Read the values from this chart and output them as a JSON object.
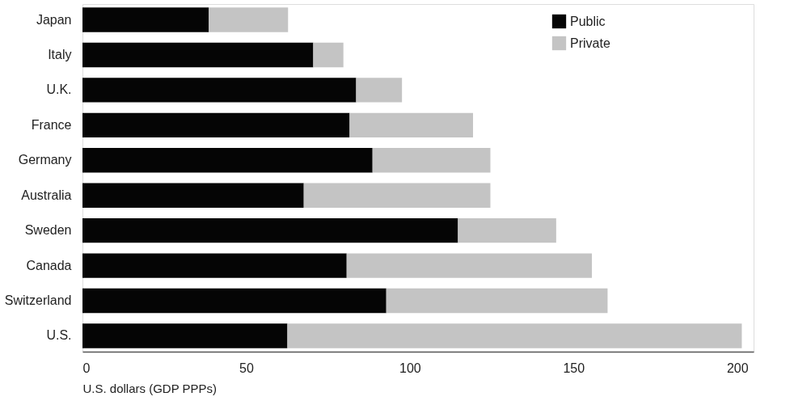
{
  "chart_data": {
    "type": "bar",
    "orientation": "horizontal",
    "stacked": true,
    "categories": [
      "Japan",
      "Italy",
      "U.K.",
      "France",
      "Germany",
      "Australia",
      "Sweden",
      "Canada",
      "Switzerland",
      "U.S."
    ],
    "series": [
      {
        "name": "Public",
        "color": "#050505",
        "values": [
          38.6,
          70.5,
          83.6,
          81.6,
          88.6,
          67.6,
          114.7,
          80.7,
          92.8,
          62.6
        ]
      },
      {
        "name": "Private",
        "color": "#c4c4c4",
        "values": [
          24.2,
          9.2,
          14.0,
          37.7,
          36.0,
          57.0,
          30.0,
          74.9,
          67.6,
          138.8
        ]
      }
    ],
    "xlabel": "U.S. dollars (GDP PPPs)",
    "xlim": [
      0,
      205
    ],
    "xticks": [
      0,
      50,
      100,
      150,
      200
    ],
    "grid": false,
    "legend": "top right"
  }
}
